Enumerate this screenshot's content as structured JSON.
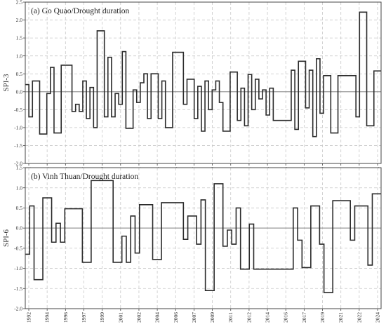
{
  "colors": {
    "line": "#2b2b2b",
    "zero_line": "#999999",
    "grid": "#c8c8c8",
    "frame": "#444444"
  },
  "chart_data": [
    {
      "type": "line",
      "title": "(a) Go Quao/Drought duration",
      "ylabel": "SPI-3",
      "xlabel": "",
      "ylim": [
        -2.0,
        2.5
      ],
      "yticks": [
        "-2.0",
        "-1.5",
        "-1.0",
        "-0.5",
        "0.0",
        "0.5",
        "1.0",
        "1.5",
        "2.0",
        "2.5"
      ],
      "xticks": [
        "1992",
        "1994",
        "1996",
        "1997",
        "1999",
        "2001",
        "2002",
        "2004",
        "2006",
        "2007",
        "2009",
        "2011",
        "2012",
        "2014",
        "2016",
        "2017",
        "2019",
        "2021",
        "2022",
        "2024"
      ],
      "grid": true,
      "series": [
        {
          "values": [
            0.2,
            -0.7,
            0.3,
            0.3,
            -1.18,
            -1.18,
            -0.05,
            0.68,
            -1.15,
            -1.15,
            0.74,
            0.74,
            0.74,
            -0.55,
            -0.35,
            -0.55,
            0.3,
            -0.75,
            0.12,
            -1.0,
            1.7,
            1.7,
            -0.7,
            0.96,
            -0.7,
            -0.05,
            -0.35,
            1.12,
            -1.02,
            -1.02,
            0.05,
            -0.3,
            0.25,
            0.5,
            -0.75,
            0.5,
            0.5,
            -0.75,
            0.3,
            -1.0,
            -1.0,
            1.1,
            1.1,
            1.1,
            -0.35,
            0.35,
            0.35,
            -0.75,
            0.15,
            -1.1,
            0.3,
            -0.5,
            0.05,
            0.3,
            -0.3,
            -1.1,
            -1.1,
            0.55,
            0.55,
            -0.8,
            0.1,
            -0.95,
            0.48,
            -0.5,
            0.35,
            -0.2,
            0.05,
            -0.65,
            0.1,
            -0.8,
            -0.8,
            -0.8,
            -0.8,
            -0.8,
            0.6,
            -1.05,
            0.85,
            0.85,
            -0.45,
            0.6,
            -1.25,
            0.92,
            -0.6,
            0.45,
            0.45,
            -1.15,
            -1.15,
            0.45,
            0.45,
            0.45,
            0.45,
            0.45,
            -0.7,
            2.22,
            2.22,
            -0.95,
            -0.95,
            0.58,
            0.58
          ]
        }
      ]
    },
    {
      "type": "line",
      "title": "(b) Vinh Thuan/Drought duration",
      "ylabel": "SPI-6",
      "xlabel": "",
      "ylim": [
        -2.0,
        1.5
      ],
      "yticks": [
        "-2.0",
        "-1.5",
        "-1.0",
        "-0.5",
        "0.0",
        "0.5",
        "1.0",
        "1.5"
      ],
      "xticks": [
        "1992",
        "1994",
        "1996",
        "1997",
        "1999",
        "2001",
        "2002",
        "2004",
        "2006",
        "2007",
        "2009",
        "2011",
        "2012",
        "2014",
        "2016",
        "2017",
        "2019",
        "2021",
        "2022",
        "2024"
      ],
      "grid": true,
      "series": [
        {
          "values": [
            -0.65,
            0.55,
            -1.28,
            -1.28,
            0.75,
            0.75,
            -0.35,
            0.12,
            -0.35,
            0.48,
            0.48,
            0.48,
            0.48,
            -0.85,
            -0.85,
            1.18,
            1.18,
            1.18,
            1.18,
            1.18,
            -0.85,
            -0.85,
            -0.2,
            -0.85,
            0.3,
            -0.62,
            0.58,
            0.58,
            0.58,
            -0.78,
            -0.78,
            0.63,
            0.63,
            0.63,
            0.63,
            0.63,
            -0.28,
            0.3,
            0.3,
            -0.4,
            0.7,
            -1.55,
            -1.55,
            1.1,
            1.1,
            -0.45,
            -0.05,
            -0.4,
            0.5,
            -1.02,
            -1.02,
            0.1,
            -1.02,
            -1.02,
            -1.02,
            -1.02,
            -1.02,
            -1.02,
            -1.02,
            -1.02,
            -1.02,
            0.5,
            -0.3,
            -0.98,
            -0.98,
            0.55,
            0.55,
            -0.4,
            -1.6,
            -1.6,
            0.68,
            0.68,
            0.68,
            0.68,
            -0.3,
            0.55,
            0.55,
            0.55,
            -0.92,
            0.85,
            0.85
          ]
        }
      ]
    }
  ]
}
